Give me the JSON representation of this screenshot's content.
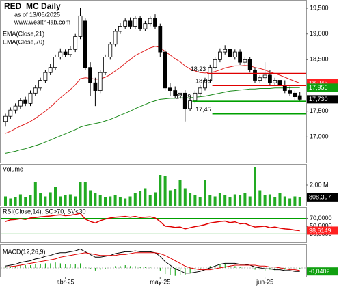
{
  "chart_data": {
    "type": "candlestick",
    "title": "RED_MC Daily",
    "subtitle": "as of 13/06/2025",
    "source": "www.wealth-lab.com",
    "open": [
      17300,
      17400,
      17520,
      17600,
      17720,
      17650,
      17850,
      17950,
      18100,
      18250,
      18350,
      18550,
      18650,
      18600,
      18700,
      18950,
      19250,
      18350,
      18050,
      17900,
      18250,
      18550,
      18800,
      19050,
      19150,
      19250,
      19150,
      19300,
      19100,
      19200,
      19300,
      19150,
      18650,
      17950,
      17900,
      17800,
      17850,
      17550,
      17700,
      17850,
      17950,
      18100,
      18350,
      18500,
      18650,
      18700,
      18550,
      18650,
      18450,
      18500,
      18300,
      18100,
      18150,
      18200,
      18050,
      18100,
      18000,
      17900,
      17850,
      17800
    ],
    "high": [
      17450,
      17570,
      17650,
      17750,
      17780,
      17900,
      18000,
      18150,
      18300,
      18420,
      18600,
      18720,
      18700,
      18760,
      19000,
      19500,
      19300,
      18450,
      18150,
      18300,
      18600,
      18850,
      19100,
      19220,
      19300,
      19320,
      19350,
      19350,
      19250,
      19350,
      19380,
      19200,
      18700,
      18050,
      17980,
      17900,
      17920,
      17750,
      17900,
      18000,
      18150,
      18400,
      18550,
      18720,
      18780,
      18780,
      18700,
      18700,
      18560,
      18550,
      18350,
      18200,
      18450,
      18300,
      18150,
      18180,
      18100,
      17980,
      17900,
      17880
    ],
    "low": [
      17200,
      17350,
      17450,
      17550,
      17600,
      17600,
      17800,
      17900,
      18050,
      18200,
      18300,
      18500,
      18550,
      18550,
      18650,
      18900,
      18300,
      17800,
      17600,
      17850,
      18200,
      18500,
      18750,
      19000,
      19100,
      19100,
      19100,
      19050,
      19050,
      19150,
      19100,
      18550,
      17900,
      17800,
      17750,
      17750,
      17300,
      17500,
      17650,
      17800,
      17900,
      18050,
      18300,
      18450,
      18600,
      18500,
      18500,
      18400,
      18400,
      18250,
      18050,
      18050,
      18100,
      18000,
      18000,
      17950,
      17850,
      17800,
      17720,
      17700
    ],
    "close": [
      17400,
      17520,
      17600,
      17700,
      17650,
      17850,
      17950,
      18100,
      18250,
      18350,
      18550,
      18650,
      18600,
      18700,
      18950,
      19350,
      18350,
      18050,
      17900,
      18250,
      18550,
      18800,
      19050,
      19150,
      19250,
      19150,
      19300,
      19100,
      19200,
      19300,
      19150,
      18650,
      17950,
      17900,
      17800,
      17850,
      17550,
      17700,
      17850,
      17950,
      18100,
      18350,
      18500,
      18650,
      18700,
      18550,
      18650,
      18450,
      18500,
      18300,
      18100,
      18150,
      18200,
      18050,
      18100,
      18000,
      17900,
      17850,
      17780,
      17730
    ],
    "series": [
      {
        "name": "EMA(Close,21)",
        "color": "#e02020",
        "values": [
          17070,
          17110,
          17160,
          17210,
          17250,
          17300,
          17360,
          17430,
          17500,
          17580,
          17670,
          17760,
          17840,
          17920,
          18010,
          18130,
          18150,
          18140,
          18120,
          18130,
          18160,
          18210,
          18280,
          18350,
          18430,
          18500,
          18580,
          18630,
          18680,
          18730,
          18760,
          18740,
          18660,
          18590,
          18520,
          18460,
          18380,
          18320,
          18280,
          18250,
          18240,
          18250,
          18270,
          18300,
          18340,
          18360,
          18380,
          18380,
          18390,
          18380,
          18350,
          18330,
          18300,
          18260,
          18230,
          18200,
          18160,
          18120,
          18080,
          18046
        ]
      },
      {
        "name": "EMA(Close,70)",
        "color": "#1a8a1a",
        "values": [
          16680,
          16700,
          16720,
          16750,
          16770,
          16800,
          16830,
          16860,
          16900,
          16940,
          16980,
          17020,
          17060,
          17100,
          17140,
          17190,
          17220,
          17240,
          17260,
          17280,
          17310,
          17340,
          17380,
          17420,
          17460,
          17500,
          17550,
          17590,
          17630,
          17670,
          17700,
          17730,
          17740,
          17750,
          17750,
          17760,
          17760,
          17760,
          17770,
          17780,
          17790,
          17810,
          17830,
          17850,
          17870,
          17890,
          17900,
          17910,
          17920,
          17930,
          17930,
          17940,
          17940,
          17940,
          17950,
          17950,
          17950,
          17955,
          17956,
          17956
        ]
      }
    ],
    "ylim": [
      16500,
      19660
    ],
    "yticks": [
      {
        "value": 17000,
        "label": "17,000"
      },
      {
        "value": 17500,
        "label": "17,500"
      },
      {
        "value": 18500,
        "label": "18,500"
      },
      {
        "value": 19000,
        "label": "19,000"
      },
      {
        "value": 19500,
        "label": "19,500"
      }
    ],
    "last_labels": [
      {
        "value": 18046,
        "label": "18,046",
        "color": "#ff2020"
      },
      {
        "value": 17956,
        "label": "17,956",
        "color": "#10a010"
      },
      {
        "value": 17730,
        "label": "17,730",
        "color": "#000000"
      }
    ],
    "levels": [
      {
        "value": 18230,
        "label": "18,23",
        "color": "#e00000",
        "from_index": 41
      },
      {
        "value": 18000,
        "label": "18,00",
        "color": "#e00000",
        "from_index": 42
      },
      {
        "value": 17690,
        "label": "17,69",
        "color": "#00a000",
        "from_index": 38
      },
      {
        "value": 17450,
        "label": "17,45",
        "color": "#00a000",
        "from_index": 42
      }
    ],
    "x_labels": [
      {
        "index": 12,
        "label": "abr-25"
      },
      {
        "index": 31,
        "label": "may-25"
      },
      {
        "index": 52,
        "label": "jun-25"
      }
    ],
    "volume": {
      "title": "Volume",
      "color": "#22aa22",
      "ylim": [
        0,
        4000000
      ],
      "yticks": [
        {
          "value": 2000000,
          "label": "2,00 M"
        }
      ],
      "values": [
        900000,
        700000,
        800000,
        1100000,
        800000,
        1000000,
        2300000,
        1200000,
        900000,
        1300000,
        1800000,
        900000,
        1000000,
        1100000,
        900000,
        2300000,
        2300000,
        1500000,
        1200000,
        1000000,
        800000,
        900000,
        1000000,
        800000,
        700000,
        900000,
        1200000,
        1400000,
        1700000,
        1000000,
        1300000,
        3000000,
        2900000,
        1500000,
        1600000,
        2500000,
        1700000,
        1200000,
        1000000,
        800000,
        2500000,
        1000000,
        900000,
        1200000,
        1000000,
        800000,
        1100000,
        1000000,
        1200000,
        900000,
        3800000,
        1500000,
        1000000,
        1100000,
        800000,
        1200000,
        900000,
        700000,
        900000,
        808397
      ],
      "last_label": {
        "value": 808397,
        "label": "808.397",
        "color": "#000000"
      }
    },
    "rsi": {
      "title": "RSI(Close,14), SC>70, SV<30",
      "color": "#e00000",
      "band_color": "#00a000",
      "bands": [
        70,
        30
      ],
      "ylim": [
        8,
        97
      ],
      "yticks": [
        {
          "value": 70,
          "label": "70,0000"
        },
        {
          "value": 50,
          "label": "50,0000"
        },
        {
          "value": 30,
          "label": "30,0000"
        }
      ],
      "values": [
        62,
        66,
        67,
        69,
        67,
        71,
        72,
        74,
        75,
        76,
        78,
        79,
        77,
        78,
        80,
        83,
        68,
        62,
        58,
        64,
        68,
        71,
        73,
        74,
        75,
        73,
        75,
        72,
        73,
        74,
        71,
        62,
        50,
        49,
        47,
        48,
        43,
        46,
        49,
        51,
        54,
        58,
        60,
        62,
        63,
        59,
        61,
        56,
        57,
        52,
        48,
        49,
        50,
        46,
        48,
        45,
        43,
        42,
        40,
        38.6149
      ],
      "last_label": {
        "value": 38.6149,
        "label": "38,6149",
        "color": "#ff2020"
      }
    },
    "macd": {
      "title": "MACD(12,26,9)",
      "ylim": [
        -0.1,
        0.26
      ],
      "series": [
        {
          "color": "#000000",
          "values": [
            0.02,
            0.03,
            0.04,
            0.06,
            0.07,
            0.08,
            0.1,
            0.11,
            0.13,
            0.14,
            0.16,
            0.17,
            0.17,
            0.18,
            0.19,
            0.21,
            0.18,
            0.15,
            0.12,
            0.12,
            0.13,
            0.14,
            0.16,
            0.17,
            0.18,
            0.18,
            0.19,
            0.18,
            0.18,
            0.18,
            0.17,
            0.13,
            0.07,
            0.03,
            -0.01,
            -0.03,
            -0.06,
            -0.06,
            -0.05,
            -0.04,
            -0.02,
            0.0,
            0.02,
            0.04,
            0.05,
            0.05,
            0.05,
            0.04,
            0.04,
            0.03,
            0.01,
            0.0,
            -0.01,
            -0.01,
            -0.02,
            -0.02,
            -0.03,
            -0.03,
            -0.04,
            -0.0402
          ]
        },
        {
          "color": "#e00000",
          "values": [
            0.01,
            0.015,
            0.02,
            0.03,
            0.04,
            0.05,
            0.06,
            0.07,
            0.08,
            0.09,
            0.1,
            0.12,
            0.13,
            0.14,
            0.15,
            0.16,
            0.17,
            0.16,
            0.15,
            0.14,
            0.14,
            0.14,
            0.14,
            0.15,
            0.15,
            0.16,
            0.17,
            0.17,
            0.17,
            0.17,
            0.17,
            0.16,
            0.14,
            0.11,
            0.08,
            0.05,
            0.02,
            0.0,
            -0.01,
            -0.02,
            -0.02,
            -0.02,
            -0.01,
            0.0,
            0.01,
            0.02,
            0.03,
            0.03,
            0.03,
            0.03,
            0.03,
            0.02,
            0.02,
            0.01,
            0.01,
            0.0,
            -0.01,
            -0.02,
            -0.02,
            -0.03
          ]
        }
      ],
      "histogram": {
        "color": "#22aa22",
        "values": [
          0.01,
          0.015,
          0.02,
          0.03,
          0.03,
          0.03,
          0.04,
          0.04,
          0.05,
          0.05,
          0.06,
          0.05,
          0.04,
          0.04,
          0.04,
          0.05,
          0.01,
          -0.01,
          -0.03,
          -0.02,
          -0.01,
          0.0,
          0.02,
          0.02,
          0.03,
          0.02,
          0.02,
          0.01,
          0.01,
          0.01,
          0.0,
          -0.03,
          -0.07,
          -0.08,
          -0.09,
          -0.08,
          -0.08,
          -0.06,
          -0.04,
          -0.02,
          0.0,
          0.02,
          0.03,
          0.04,
          0.04,
          0.03,
          0.02,
          0.01,
          0.01,
          0.0,
          -0.02,
          -0.02,
          -0.03,
          -0.02,
          -0.03,
          -0.02,
          -0.02,
          -0.01,
          -0.02,
          -0.0102
        ]
      },
      "last_label": {
        "value": -0.0402,
        "label": "-0,0402",
        "color": "#10a010"
      }
    }
  }
}
